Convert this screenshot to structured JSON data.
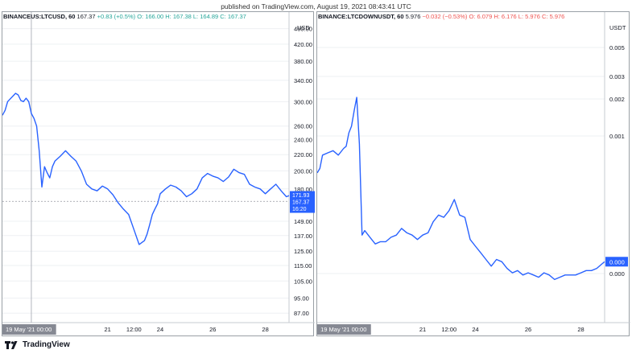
{
  "header": {
    "published": "published on TradingView.com, August 19, 2021 08:43:41 UTC"
  },
  "footer": {
    "brand": "TradingView"
  },
  "colors": {
    "line": "#2962ff",
    "up": "#26a69a",
    "down": "#ef5350",
    "grid": "#eef0f3",
    "border": "#9aa0a6"
  },
  "chart_data": [
    {
      "type": "line",
      "legend": {
        "symbol": "BINANCEUS:LTCUSD, 60",
        "last": "167.37",
        "change": "+0.83 (+0.5%)",
        "open": "O: 166.00",
        "high": "H: 167.38",
        "low": "L: 164.89",
        "close": "C: 167.37"
      },
      "currency": "USD",
      "log_scale": true,
      "ylim": [
        80,
        470
      ],
      "y_ticks": [
        {
          "v": 460,
          "label": "460.00"
        },
        {
          "v": 420,
          "label": "420.00"
        },
        {
          "v": 380,
          "label": "380.00"
        },
        {
          "v": 340,
          "label": "340.00"
        },
        {
          "v": 300,
          "label": "300.00"
        },
        {
          "v": 260,
          "label": "260.00"
        },
        {
          "v": 240,
          "label": "240.00"
        },
        {
          "v": 220,
          "label": "220.00"
        },
        {
          "v": 200,
          "label": "200.00"
        },
        {
          "v": 180,
          "label": "180.00"
        },
        {
          "v": 149,
          "label": "149.00"
        },
        {
          "v": 137,
          "label": "137.00"
        },
        {
          "v": 125,
          "label": "125.00"
        },
        {
          "v": 115,
          "label": "115.00"
        },
        {
          "v": 105,
          "label": "105.00"
        },
        {
          "v": 95,
          "label": "95.00"
        },
        {
          "v": 87,
          "label": "87.00"
        }
      ],
      "x_ticks": [
        {
          "x": 2.5,
          "label": "19 May '21  00:00",
          "highlight": true
        },
        {
          "x": 4,
          "label": "21"
        },
        {
          "x": 4.5,
          "label": "12:00"
        },
        {
          "x": 5,
          "label": "24"
        },
        {
          "x": 6,
          "label": "26"
        },
        {
          "x": 7,
          "label": "28"
        }
      ],
      "xlim": [
        2.0,
        7.45
      ],
      "crosshair_x": 2.55,
      "price_line": 167.37,
      "price_labels": [
        "171.93",
        "167.37",
        "16:20"
      ],
      "x": [
        2.0,
        2.05,
        2.1,
        2.15,
        2.2,
        2.25,
        2.3,
        2.35,
        2.4,
        2.45,
        2.5,
        2.55,
        2.6,
        2.65,
        2.7,
        2.75,
        2.8,
        2.85,
        2.9,
        2.95,
        3.0,
        3.1,
        3.2,
        3.3,
        3.4,
        3.5,
        3.6,
        3.7,
        3.8,
        3.9,
        4.0,
        4.1,
        4.2,
        4.3,
        4.4,
        4.5,
        4.6,
        4.7,
        4.75,
        4.8,
        4.85,
        4.9,
        4.95,
        5.0,
        5.1,
        5.2,
        5.3,
        5.4,
        5.5,
        5.6,
        5.7,
        5.8,
        5.9,
        6.0,
        6.1,
        6.2,
        6.3,
        6.4,
        6.5,
        6.6,
        6.7,
        6.8,
        6.9,
        7.0,
        7.1,
        7.2,
        7.3,
        7.4,
        7.45
      ],
      "y": [
        277,
        285,
        300,
        305,
        310,
        315,
        312,
        302,
        300,
        306,
        300,
        280,
        272,
        260,
        225,
        182,
        205,
        198,
        192,
        205,
        212,
        218,
        225,
        218,
        212,
        200,
        185,
        180,
        178,
        183,
        180,
        174,
        166,
        160,
        155,
        142,
        130,
        133,
        138,
        146,
        155,
        160,
        165,
        175,
        180,
        184,
        182,
        178,
        172,
        175,
        180,
        192,
        197,
        194,
        192,
        188,
        193,
        202,
        198,
        196,
        185,
        182,
        180,
        175,
        180,
        185,
        178,
        172,
        173
      ]
    },
    {
      "type": "line",
      "legend": {
        "symbol": "BINANCE:LTCDOWNUSDT, 60",
        "last": "5.976",
        "change": "−0.032 (−0.53%)",
        "open": "O: 6.079",
        "high": "H: 6.176",
        "low": "L: 5.976",
        "close": "C: 5.976"
      },
      "currency": "USDT",
      "y_ticks": [
        {
          "v": 0.005,
          "label": "0.005"
        },
        {
          "v": 0.003,
          "label": "0.003"
        },
        {
          "v": 0.002,
          "label": "0.002"
        },
        {
          "v": 0.001,
          "label": "0.001"
        },
        {
          "v": 0.0,
          "label": "0.000"
        }
      ],
      "current_label": "0.000",
      "x_ticks": [
        {
          "x": 2.5,
          "label": "19 May '21  00:00",
          "highlight": true
        },
        {
          "x": 4,
          "label": "21"
        },
        {
          "x": 4.5,
          "label": "12:00"
        },
        {
          "x": 5,
          "label": "24"
        },
        {
          "x": 6,
          "label": "26"
        },
        {
          "x": 7,
          "label": "28"
        }
      ],
      "xlim": [
        2.0,
        7.45
      ],
      "x": [
        2.0,
        2.05,
        2.1,
        2.2,
        2.3,
        2.4,
        2.5,
        2.55,
        2.6,
        2.65,
        2.7,
        2.75,
        2.8,
        2.85,
        2.9,
        3.0,
        3.1,
        3.2,
        3.3,
        3.4,
        3.5,
        3.6,
        3.7,
        3.8,
        3.9,
        4.0,
        4.1,
        4.2,
        4.3,
        4.4,
        4.5,
        4.6,
        4.7,
        4.8,
        4.9,
        5.0,
        5.1,
        5.2,
        5.3,
        5.4,
        5.5,
        5.6,
        5.7,
        5.8,
        5.9,
        6.0,
        6.1,
        6.2,
        6.3,
        6.4,
        6.5,
        6.6,
        6.7,
        6.8,
        6.9,
        7.0,
        7.1,
        7.2,
        7.3,
        7.4,
        7.45
      ],
      "y": [
        0.62,
        0.64,
        0.7,
        0.71,
        0.72,
        0.7,
        0.73,
        0.74,
        0.8,
        0.83,
        0.9,
        0.96,
        0.75,
        0.34,
        0.36,
        0.33,
        0.3,
        0.31,
        0.31,
        0.33,
        0.34,
        0.37,
        0.35,
        0.34,
        0.32,
        0.34,
        0.35,
        0.4,
        0.43,
        0.42,
        0.45,
        0.5,
        0.43,
        0.42,
        0.32,
        0.29,
        0.26,
        0.23,
        0.2,
        0.23,
        0.22,
        0.19,
        0.17,
        0.18,
        0.16,
        0.17,
        0.16,
        0.15,
        0.17,
        0.16,
        0.14,
        0.15,
        0.16,
        0.16,
        0.16,
        0.17,
        0.18,
        0.18,
        0.19,
        0.21,
        0.22
      ]
    }
  ]
}
